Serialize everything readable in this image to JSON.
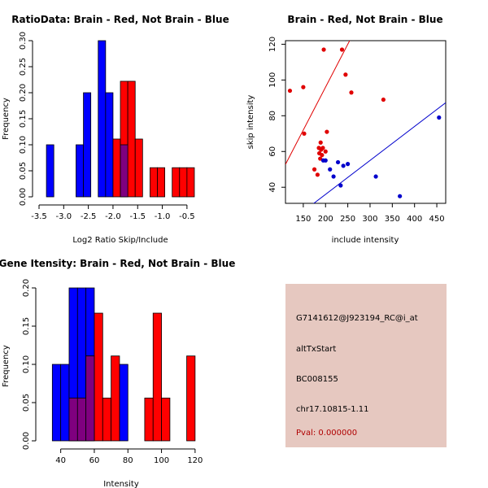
{
  "colors": {
    "red": "#ff0000",
    "blue": "#0000ff",
    "overlap": "#7f007f",
    "scatter_red": "#e00000",
    "scatter_blue": "#0000cc",
    "info_bg": "#e6c8c0"
  },
  "chart_data": [
    {
      "id": "ratio-hist",
      "type": "histogram",
      "title": "RatioData: Brain - Red, Not Brain - Blue",
      "xlabel": "Log2 Ratio Skip/Include",
      "ylabel": "Frequency",
      "xlim": [
        -3.5,
        -0.3
      ],
      "ylim": [
        0,
        0.3
      ],
      "xticks": [
        -3.5,
        -3.0,
        -2.5,
        -2.0,
        -1.5,
        -1.0,
        -0.5
      ],
      "xtick_labels": [
        "-3.5",
        "-3.0",
        "-2.5",
        "-2.0",
        "-1.5",
        "-1.0",
        "-0.5"
      ],
      "yticks": [
        0,
        0.05,
        0.1,
        0.15,
        0.2,
        0.25,
        0.3
      ],
      "ytick_labels": [
        "0.00",
        "0.05",
        "0.10",
        "0.15",
        "0.20",
        "0.25",
        "0.30"
      ],
      "series": [
        {
          "name": "Not Brain",
          "color": "blue",
          "bins": [
            {
              "x0": -3.35,
              "x1": -3.2,
              "y": 0.1
            },
            {
              "x0": -2.75,
              "x1": -2.6,
              "y": 0.1
            },
            {
              "x0": -2.6,
              "x1": -2.45,
              "y": 0.2
            },
            {
              "x0": -2.3,
              "x1": -2.15,
              "y": 0.3
            },
            {
              "x0": -2.15,
              "x1": -2.0,
              "y": 0.2
            },
            {
              "x0": -1.85,
              "x1": -1.7,
              "y": 0.1
            }
          ]
        },
        {
          "name": "Brain",
          "color": "red",
          "bins": [
            {
              "x0": -2.0,
              "x1": -1.85,
              "y": 0.111
            },
            {
              "x0": -1.85,
              "x1": -1.7,
              "y": 0.222
            },
            {
              "x0": -1.7,
              "x1": -1.55,
              "y": 0.222
            },
            {
              "x0": -1.55,
              "x1": -1.4,
              "y": 0.111
            },
            {
              "x0": -1.25,
              "x1": -1.1,
              "y": 0.056
            },
            {
              "x0": -1.1,
              "x1": -0.95,
              "y": 0.056
            },
            {
              "x0": -0.8,
              "x1": -0.65,
              "y": 0.056
            },
            {
              "x0": -0.65,
              "x1": -0.5,
              "y": 0.056
            },
            {
              "x0": -0.5,
              "x1": -0.35,
              "y": 0.056
            }
          ]
        }
      ]
    },
    {
      "id": "scatter",
      "type": "scatter",
      "title": "Brain - Red, Not Brain - Blue",
      "xlabel": "include intensity",
      "ylabel": "skip intensity",
      "xlim": [
        110,
        470
      ],
      "ylim": [
        31,
        122
      ],
      "xticks": [
        150,
        200,
        250,
        300,
        350,
        400,
        450
      ],
      "xtick_labels": [
        "150",
        "200",
        "250",
        "300",
        "350",
        "400",
        "450"
      ],
      "yticks": [
        40,
        60,
        80,
        100,
        120
      ],
      "ytick_labels": [
        "40",
        "60",
        "80",
        "100",
        "120"
      ],
      "series": [
        {
          "name": "Brain",
          "color": "scatter_red",
          "points": [
            [
              120,
              94
            ],
            [
              150,
              96
            ],
            [
              152,
              70
            ],
            [
              175,
              50
            ],
            [
              182,
              47
            ],
            [
              185,
              62
            ],
            [
              186,
              59
            ],
            [
              188,
              56
            ],
            [
              189,
              65
            ],
            [
              190,
              61
            ],
            [
              192,
              58
            ],
            [
              194,
              62
            ],
            [
              196,
              117
            ],
            [
              200,
              60
            ],
            [
              203,
              71
            ],
            [
              237,
              117
            ],
            [
              245,
              103
            ],
            [
              258,
              93
            ],
            [
              330,
              89
            ]
          ],
          "fit_line": {
            "slope": 0.48,
            "intercept": 0.0
          }
        },
        {
          "name": "Not Brain",
          "color": "scatter_blue",
          "points": [
            [
              195,
              55
            ],
            [
              200,
              55
            ],
            [
              210,
              50
            ],
            [
              218,
              46
            ],
            [
              228,
              54
            ],
            [
              234,
              41
            ],
            [
              240,
              52
            ],
            [
              250,
              53
            ],
            [
              313,
              46
            ],
            [
              367,
              35
            ],
            [
              455,
              79
            ]
          ],
          "fit_line": {
            "slope": 0.19,
            "intercept": -2.0
          }
        }
      ]
    },
    {
      "id": "gene-hist",
      "type": "histogram",
      "title": "Gene Itensity: Brain - Red, Not Brain - Blue",
      "xlabel": "Intensity",
      "ylabel": "Frequency",
      "xlim": [
        30,
        122
      ],
      "ylim": [
        0,
        0.2
      ],
      "xticks": [
        40,
        60,
        80,
        100,
        120
      ],
      "xtick_labels": [
        "40",
        "60",
        "80",
        "100",
        "120"
      ],
      "yticks": [
        0,
        0.05,
        0.1,
        0.15,
        0.2
      ],
      "ytick_labels": [
        "0.00",
        "0.05",
        "0.10",
        "0.15",
        "0.20"
      ],
      "series": [
        {
          "name": "Not Brain",
          "color": "blue",
          "bins": [
            {
              "x0": 35,
              "x1": 40,
              "y": 0.1
            },
            {
              "x0": 40,
              "x1": 45,
              "y": 0.1
            },
            {
              "x0": 45,
              "x1": 50,
              "y": 0.2
            },
            {
              "x0": 50,
              "x1": 55,
              "y": 0.2
            },
            {
              "x0": 55,
              "x1": 60,
              "y": 0.2
            },
            {
              "x0": 75,
              "x1": 80,
              "y": 0.1
            }
          ]
        },
        {
          "name": "Brain",
          "color": "red",
          "bins": [
            {
              "x0": 45,
              "x1": 50,
              "y": 0.056
            },
            {
              "x0": 50,
              "x1": 55,
              "y": 0.056
            },
            {
              "x0": 55,
              "x1": 60,
              "y": 0.111
            },
            {
              "x0": 60,
              "x1": 65,
              "y": 0.167
            },
            {
              "x0": 65,
              "x1": 70,
              "y": 0.056
            },
            {
              "x0": 70,
              "x1": 75,
              "y": 0.111
            },
            {
              "x0": 90,
              "x1": 95,
              "y": 0.056
            },
            {
              "x0": 95,
              "x1": 100,
              "y": 0.167
            },
            {
              "x0": 100,
              "x1": 105,
              "y": 0.056
            },
            {
              "x0": 115,
              "x1": 120,
              "y": 0.111
            }
          ]
        }
      ]
    }
  ],
  "info_panel": {
    "probe": "G7141612@J923194_RC@i_at",
    "event": "altTxStart",
    "accession": "BC008155",
    "location": "chr17.10815-1.11",
    "pval": "Pval: 0.000000"
  }
}
